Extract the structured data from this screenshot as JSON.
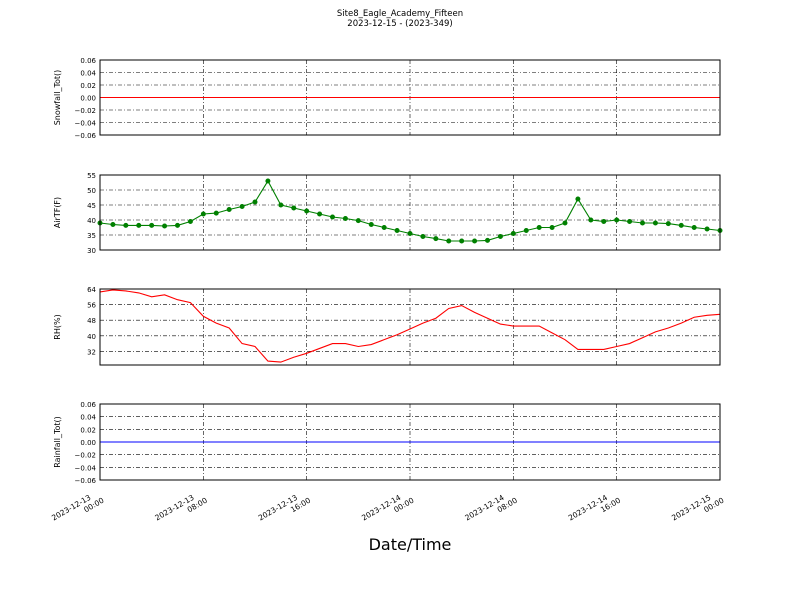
{
  "title": "Site8_Eagle_Academy_Fifteen",
  "subtitle": "2023-12-15 - (2023-349)",
  "xlabel": "Date/Time",
  "chart_data": [
    {
      "type": "line",
      "ylabel": "Snowfall_Tot()",
      "color": "#ff0000",
      "markers": false,
      "grid": true,
      "x": [
        "2023-12-13 00:00",
        "2023-12-13 01:00",
        "2023-12-13 02:00",
        "2023-12-13 03:00",
        "2023-12-13 04:00",
        "2023-12-13 05:00",
        "2023-12-13 06:00",
        "2023-12-13 07:00",
        "2023-12-13 08:00",
        "2023-12-13 09:00",
        "2023-12-13 10:00",
        "2023-12-13 11:00",
        "2023-12-13 12:00",
        "2023-12-13 13:00",
        "2023-12-13 14:00",
        "2023-12-13 15:00",
        "2023-12-13 16:00",
        "2023-12-13 17:00",
        "2023-12-13 18:00",
        "2023-12-13 19:00",
        "2023-12-13 20:00",
        "2023-12-13 21:00",
        "2023-12-13 22:00",
        "2023-12-13 23:00",
        "2023-12-14 00:00",
        "2023-12-14 01:00",
        "2023-12-14 02:00",
        "2023-12-14 03:00",
        "2023-12-14 04:00",
        "2023-12-14 05:00",
        "2023-12-14 06:00",
        "2023-12-14 07:00",
        "2023-12-14 08:00",
        "2023-12-14 09:00",
        "2023-12-14 10:00",
        "2023-12-14 11:00",
        "2023-12-14 12:00",
        "2023-12-14 13:00",
        "2023-12-14 14:00",
        "2023-12-14 15:00",
        "2023-12-14 16:00",
        "2023-12-14 17:00",
        "2023-12-14 18:00",
        "2023-12-14 19:00",
        "2023-12-14 20:00",
        "2023-12-14 21:00",
        "2023-12-14 22:00",
        "2023-12-14 23:00",
        "2023-12-15 00:00"
      ],
      "values": [
        0,
        0,
        0,
        0,
        0,
        0,
        0,
        0,
        0,
        0,
        0,
        0,
        0,
        0,
        0,
        0,
        0,
        0,
        0,
        0,
        0,
        0,
        0,
        0,
        0,
        0,
        0,
        0,
        0,
        0,
        0,
        0,
        0,
        0,
        0,
        0,
        0,
        0,
        0,
        0,
        0,
        0,
        0,
        0,
        0,
        0,
        0,
        0,
        0
      ],
      "xlim": [
        "2023-12-13 00:00",
        "2023-12-15 00:00"
      ],
      "xticks": [
        "2023-12-13 00:00",
        "2023-12-13 08:00",
        "2023-12-13 16:00",
        "2023-12-14 00:00",
        "2023-12-14 08:00",
        "2023-12-14 16:00",
        "2023-12-15 00:00"
      ],
      "ylim": [
        -0.06,
        0.06
      ],
      "yticks": [
        {
          "value": -0.06,
          "label": "−0.06"
        },
        {
          "value": -0.04,
          "label": "−0.04"
        },
        {
          "value": -0.02,
          "label": "−0.02"
        },
        {
          "value": 0,
          "label": "0.00"
        },
        0.02,
        0.04,
        0.06
      ]
    },
    {
      "type": "line",
      "ylabel": "AirTF(F)",
      "color": "#008000",
      "markers": true,
      "grid": true,
      "x": [
        "2023-12-13 00:00",
        "2023-12-13 01:00",
        "2023-12-13 02:00",
        "2023-12-13 03:00",
        "2023-12-13 04:00",
        "2023-12-13 05:00",
        "2023-12-13 06:00",
        "2023-12-13 07:00",
        "2023-12-13 08:00",
        "2023-12-13 09:00",
        "2023-12-13 10:00",
        "2023-12-13 11:00",
        "2023-12-13 12:00",
        "2023-12-13 13:00",
        "2023-12-13 14:00",
        "2023-12-13 15:00",
        "2023-12-13 16:00",
        "2023-12-13 17:00",
        "2023-12-13 18:00",
        "2023-12-13 19:00",
        "2023-12-13 20:00",
        "2023-12-13 21:00",
        "2023-12-13 22:00",
        "2023-12-13 23:00",
        "2023-12-14 00:00",
        "2023-12-14 01:00",
        "2023-12-14 02:00",
        "2023-12-14 03:00",
        "2023-12-14 04:00",
        "2023-12-14 05:00",
        "2023-12-14 06:00",
        "2023-12-14 07:00",
        "2023-12-14 08:00",
        "2023-12-14 09:00",
        "2023-12-14 10:00",
        "2023-12-14 11:00",
        "2023-12-14 12:00",
        "2023-12-14 13:00",
        "2023-12-14 14:00",
        "2023-12-14 15:00",
        "2023-12-14 16:00",
        "2023-12-14 17:00",
        "2023-12-14 18:00",
        "2023-12-14 19:00",
        "2023-12-14 20:00",
        "2023-12-14 21:00",
        "2023-12-14 22:00",
        "2023-12-14 23:00",
        "2023-12-15 00:00"
      ],
      "values": [
        39,
        38.5,
        38.2,
        38.2,
        38.2,
        38,
        38.2,
        39.5,
        42,
        42.3,
        43.5,
        44.5,
        46,
        53,
        45,
        44,
        43,
        42,
        41,
        40.5,
        39.8,
        38.5,
        37.5,
        36.5,
        35.5,
        34.5,
        33.8,
        33,
        33,
        33,
        33.2,
        34.5,
        35.5,
        36.5,
        37.5,
        37.5,
        39,
        47,
        40,
        39.5,
        40,
        39.5,
        39,
        39,
        38.8,
        38.2,
        37.5,
        37,
        36.5
      ],
      "xlim": [
        "2023-12-13 00:00",
        "2023-12-15 00:00"
      ],
      "xticks": [
        "2023-12-13 00:00",
        "2023-12-13 08:00",
        "2023-12-13 16:00",
        "2023-12-14 00:00",
        "2023-12-14 08:00",
        "2023-12-14 16:00",
        "2023-12-15 00:00"
      ],
      "ylim": [
        30,
        55
      ],
      "yticks": [
        30,
        35,
        40,
        45,
        50,
        55
      ]
    },
    {
      "type": "line",
      "ylabel": "RH(%)",
      "color": "#ff0000",
      "markers": false,
      "grid": true,
      "x": [
        "2023-12-13 00:00",
        "2023-12-13 01:00",
        "2023-12-13 02:00",
        "2023-12-13 03:00",
        "2023-12-13 04:00",
        "2023-12-13 05:00",
        "2023-12-13 06:00",
        "2023-12-13 07:00",
        "2023-12-13 08:00",
        "2023-12-13 09:00",
        "2023-12-13 10:00",
        "2023-12-13 11:00",
        "2023-12-13 12:00",
        "2023-12-13 13:00",
        "2023-12-13 14:00",
        "2023-12-13 15:00",
        "2023-12-13 16:00",
        "2023-12-13 17:00",
        "2023-12-13 18:00",
        "2023-12-13 19:00",
        "2023-12-13 20:00",
        "2023-12-13 21:00",
        "2023-12-13 22:00",
        "2023-12-13 23:00",
        "2023-12-14 00:00",
        "2023-12-14 01:00",
        "2023-12-14 02:00",
        "2023-12-14 03:00",
        "2023-12-14 04:00",
        "2023-12-14 05:00",
        "2023-12-14 06:00",
        "2023-12-14 07:00",
        "2023-12-14 08:00",
        "2023-12-14 09:00",
        "2023-12-14 10:00",
        "2023-12-14 11:00",
        "2023-12-14 12:00",
        "2023-12-14 13:00",
        "2023-12-14 14:00",
        "2023-12-14 15:00",
        "2023-12-14 16:00",
        "2023-12-14 17:00",
        "2023-12-14 18:00",
        "2023-12-14 19:00",
        "2023-12-14 20:00",
        "2023-12-14 21:00",
        "2023-12-14 22:00",
        "2023-12-14 23:00",
        "2023-12-15 00:00"
      ],
      "values": [
        62.5,
        63.5,
        63,
        62,
        60,
        61,
        58.5,
        57,
        50,
        46.5,
        44,
        36,
        34.5,
        27,
        26.5,
        29,
        31,
        33.5,
        36,
        36,
        34.5,
        35.5,
        38,
        40.5,
        43.5,
        46.5,
        49,
        54,
        55.5,
        52,
        49,
        46,
        45,
        45,
        45,
        41.5,
        38,
        33,
        33,
        33,
        34.5,
        36,
        39,
        42,
        44,
        46.5,
        49.5,
        50.5,
        51
      ],
      "xlim": [
        "2023-12-13 00:00",
        "2023-12-15 00:00"
      ],
      "xticks": [
        "2023-12-13 00:00",
        "2023-12-13 08:00",
        "2023-12-13 16:00",
        "2023-12-14 00:00",
        "2023-12-14 08:00",
        "2023-12-14 16:00",
        "2023-12-15 00:00"
      ],
      "ylim": [
        25,
        64
      ],
      "yticks": [
        32,
        40,
        48,
        56,
        64
      ]
    },
    {
      "type": "line",
      "ylabel": "Rainfall_Tot()",
      "color": "#0000ff",
      "markers": false,
      "grid": true,
      "x": [
        "2023-12-13 00:00",
        "2023-12-13 01:00",
        "2023-12-13 02:00",
        "2023-12-13 03:00",
        "2023-12-13 04:00",
        "2023-12-13 05:00",
        "2023-12-13 06:00",
        "2023-12-13 07:00",
        "2023-12-13 08:00",
        "2023-12-13 09:00",
        "2023-12-13 10:00",
        "2023-12-13 11:00",
        "2023-12-13 12:00",
        "2023-12-13 13:00",
        "2023-12-13 14:00",
        "2023-12-13 15:00",
        "2023-12-13 16:00",
        "2023-12-13 17:00",
        "2023-12-13 18:00",
        "2023-12-13 19:00",
        "2023-12-13 20:00",
        "2023-12-13 21:00",
        "2023-12-13 22:00",
        "2023-12-13 23:00",
        "2023-12-14 00:00",
        "2023-12-14 01:00",
        "2023-12-14 02:00",
        "2023-12-14 03:00",
        "2023-12-14 04:00",
        "2023-12-14 05:00",
        "2023-12-14 06:00",
        "2023-12-14 07:00",
        "2023-12-14 08:00",
        "2023-12-14 09:00",
        "2023-12-14 10:00",
        "2023-12-14 11:00",
        "2023-12-14 12:00",
        "2023-12-14 13:00",
        "2023-12-14 14:00",
        "2023-12-14 15:00",
        "2023-12-14 16:00",
        "2023-12-14 17:00",
        "2023-12-14 18:00",
        "2023-12-14 19:00",
        "2023-12-14 20:00",
        "2023-12-14 21:00",
        "2023-12-14 22:00",
        "2023-12-14 23:00",
        "2023-12-15 00:00"
      ],
      "values": [
        0,
        0,
        0,
        0,
        0,
        0,
        0,
        0,
        0,
        0,
        0,
        0,
        0,
        0,
        0,
        0,
        0,
        0,
        0,
        0,
        0,
        0,
        0,
        0,
        0,
        0,
        0,
        0,
        0,
        0,
        0,
        0,
        0,
        0,
        0,
        0,
        0,
        0,
        0,
        0,
        0,
        0,
        0,
        0,
        0,
        0,
        0,
        0,
        0
      ],
      "xlim": [
        "2023-12-13 00:00",
        "2023-12-15 00:00"
      ],
      "xticks": [
        "2023-12-13 00:00",
        "2023-12-13 08:00",
        "2023-12-13 16:00",
        "2023-12-14 00:00",
        "2023-12-14 08:00",
        "2023-12-14 16:00",
        "2023-12-15 00:00"
      ],
      "ylim": [
        -0.06,
        0.06
      ],
      "yticks": [
        {
          "value": -0.06,
          "label": "−0.06"
        },
        {
          "value": -0.04,
          "label": "−0.04"
        },
        {
          "value": -0.02,
          "label": "−0.02"
        },
        {
          "value": 0,
          "label": "0.00"
        },
        0.02,
        0.04,
        0.06
      ]
    }
  ]
}
